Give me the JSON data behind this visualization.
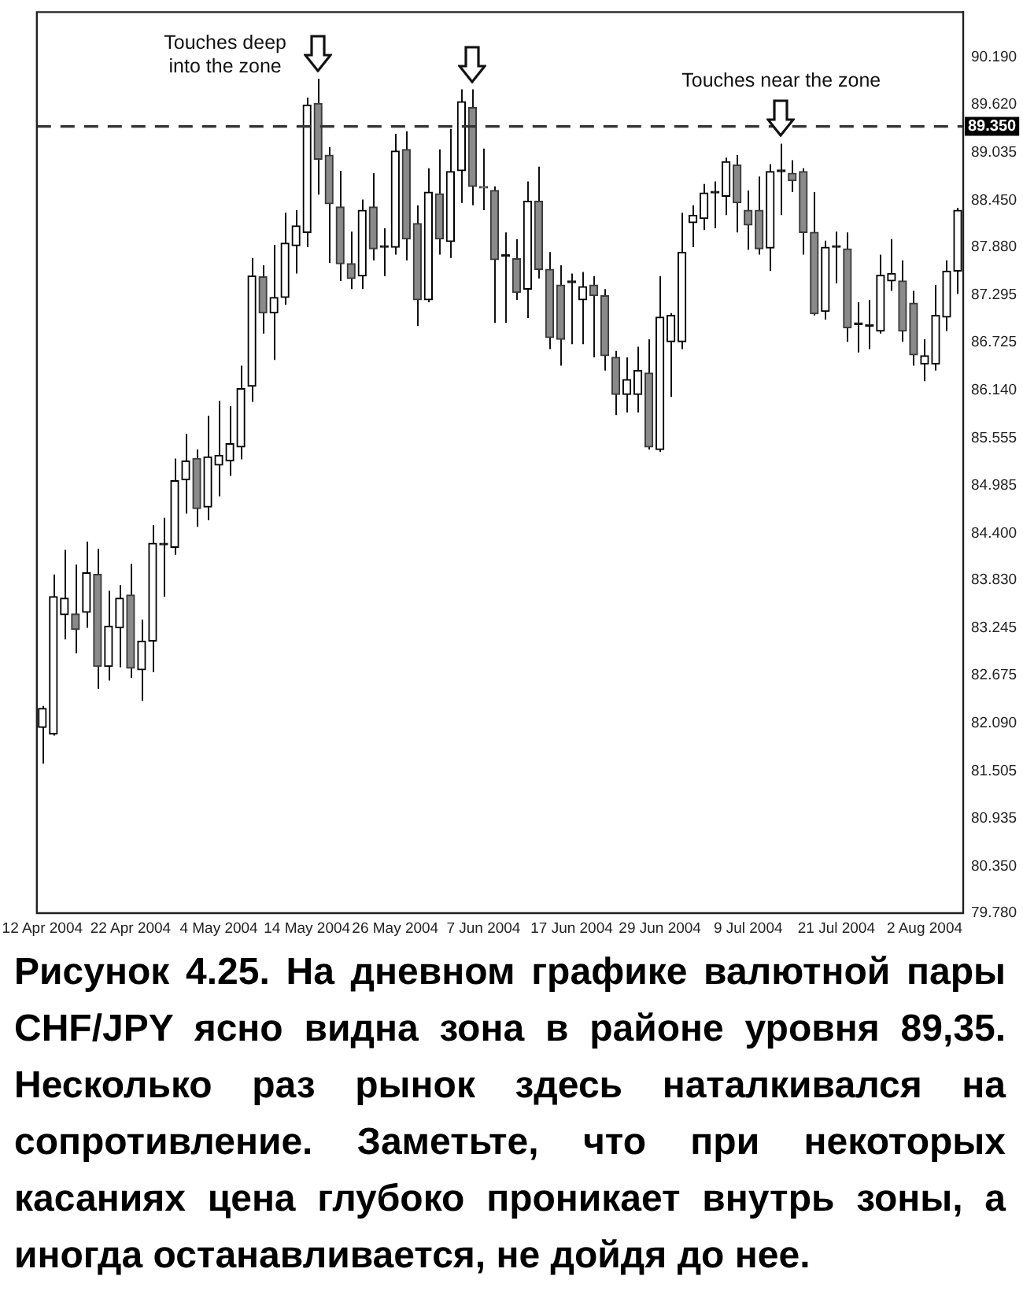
{
  "chart_data": {
    "type": "candlestick",
    "categories": [
      "12 Apr 2004",
      null,
      null,
      null,
      null,
      null,
      null,
      null,
      "22 Apr 2004",
      null,
      null,
      null,
      null,
      null,
      null,
      null,
      "4 May 2004",
      null,
      null,
      null,
      null,
      null,
      null,
      null,
      "14 May 2004",
      null,
      null,
      null,
      null,
      null,
      null,
      null,
      "26 May 2004",
      null,
      null,
      null,
      null,
      null,
      null,
      null,
      "7 Jun 2004",
      null,
      null,
      null,
      null,
      null,
      null,
      null,
      "17 Jun 2004",
      null,
      null,
      null,
      null,
      null,
      null,
      null,
      "29 Jun 2004",
      null,
      null,
      null,
      null,
      null,
      null,
      null,
      "9 Jul 2004",
      null,
      null,
      null,
      null,
      null,
      null,
      null,
      "21 Jul 2004",
      null,
      null,
      null,
      null,
      null,
      null,
      null,
      "2 Aug 2004",
      null,
      null,
      null
    ],
    "ohlc": [
      [
        82.04,
        82.3,
        81.6,
        82.27
      ],
      [
        81.96,
        83.9,
        81.94,
        83.63
      ],
      [
        83.41,
        84.2,
        83.11,
        83.61
      ],
      [
        83.42,
        84.02,
        82.94,
        83.23
      ],
      [
        83.44,
        84.3,
        83.25,
        83.92
      ],
      [
        83.9,
        84.21,
        82.51,
        82.78
      ],
      [
        82.78,
        83.7,
        82.61,
        83.27
      ],
      [
        83.25,
        83.77,
        82.77,
        83.61
      ],
      [
        83.65,
        84.03,
        82.64,
        82.76
      ],
      [
        82.74,
        83.35,
        82.36,
        83.09
      ],
      [
        83.09,
        84.5,
        82.71,
        84.28
      ],
      [
        84.26,
        84.59,
        83.63,
        84.26
      ],
      [
        84.23,
        85.31,
        84.14,
        85.04
      ],
      [
        85.05,
        85.61,
        84.64,
        85.28
      ],
      [
        85.31,
        85.42,
        84.48,
        84.7
      ],
      [
        84.72,
        85.83,
        84.56,
        85.33
      ],
      [
        85.23,
        86.01,
        84.85,
        85.35
      ],
      [
        85.28,
        85.95,
        85.1,
        85.49
      ],
      [
        85.45,
        86.44,
        85.3,
        86.16
      ],
      [
        86.19,
        87.75,
        86.0,
        87.53
      ],
      [
        87.52,
        87.66,
        86.83,
        87.08
      ],
      [
        87.08,
        87.91,
        86.51,
        87.27
      ],
      [
        87.27,
        88.3,
        87.18,
        87.93
      ],
      [
        87.9,
        88.33,
        87.56,
        88.14
      ],
      [
        88.06,
        89.7,
        87.88,
        89.61
      ],
      [
        89.63,
        89.93,
        88.52,
        88.95
      ],
      [
        89.0,
        89.1,
        87.69,
        88.41
      ],
      [
        88.37,
        88.81,
        87.47,
        87.68
      ],
      [
        87.68,
        88.07,
        87.37,
        87.5
      ],
      [
        87.53,
        88.46,
        87.37,
        88.33
      ],
      [
        88.37,
        88.78,
        87.72,
        87.86
      ],
      [
        87.88,
        88.11,
        87.53,
        87.88
      ],
      [
        87.88,
        89.26,
        87.79,
        89.05
      ],
      [
        89.07,
        89.29,
        87.72,
        87.98
      ],
      [
        88.17,
        88.39,
        86.92,
        87.24
      ],
      [
        87.24,
        88.84,
        87.21,
        88.55
      ],
      [
        88.53,
        89.07,
        87.79,
        87.98
      ],
      [
        87.95,
        89.32,
        87.75,
        88.8
      ],
      [
        88.81,
        89.8,
        88.42,
        89.65
      ],
      [
        89.58,
        89.8,
        88.39,
        88.62
      ],
      [
        88.62,
        89.08,
        88.33,
        88.6
      ],
      [
        88.57,
        88.62,
        86.96,
        87.73
      ],
      [
        87.77,
        88.06,
        86.96,
        87.77
      ],
      [
        87.74,
        87.98,
        87.24,
        87.33
      ],
      [
        87.37,
        88.68,
        87.02,
        88.44
      ],
      [
        88.44,
        88.86,
        87.5,
        87.61
      ],
      [
        87.61,
        87.82,
        86.64,
        86.78
      ],
      [
        87.42,
        87.66,
        86.44,
        86.76
      ],
      [
        87.45,
        87.56,
        86.7,
        87.45
      ],
      [
        87.24,
        87.58,
        86.7,
        87.4
      ],
      [
        87.42,
        87.53,
        86.54,
        87.29
      ],
      [
        87.29,
        87.37,
        86.38,
        86.56
      ],
      [
        86.54,
        86.62,
        85.84,
        86.09
      ],
      [
        86.09,
        86.54,
        85.87,
        86.27
      ],
      [
        86.09,
        86.67,
        85.87,
        86.38
      ],
      [
        86.35,
        86.76,
        85.42,
        85.45
      ],
      [
        85.42,
        87.53,
        85.39,
        87.03
      ],
      [
        86.73,
        87.08,
        86.06,
        87.05
      ],
      [
        86.73,
        88.3,
        86.64,
        87.82
      ],
      [
        88.18,
        88.39,
        87.88,
        88.27
      ],
      [
        88.23,
        88.65,
        88.09,
        88.54
      ],
      [
        88.54,
        88.68,
        88.11,
        88.54
      ],
      [
        88.5,
        88.97,
        88.27,
        88.92
      ],
      [
        88.88,
        89.0,
        88.06,
        88.42
      ],
      [
        88.33,
        88.57,
        87.85,
        88.15
      ],
      [
        88.33,
        88.74,
        87.79,
        87.86
      ],
      [
        87.87,
        88.89,
        87.59,
        88.8
      ],
      [
        88.8,
        89.14,
        88.27,
        88.8
      ],
      [
        88.78,
        88.94,
        88.55,
        88.69
      ],
      [
        88.8,
        88.84,
        87.79,
        88.06
      ],
      [
        88.06,
        88.55,
        87.05,
        87.07
      ],
      [
        87.1,
        87.96,
        87.0,
        87.88
      ],
      [
        87.88,
        88.07,
        87.44,
        87.88
      ],
      [
        87.86,
        88.06,
        86.73,
        86.9
      ],
      [
        86.94,
        87.21,
        86.6,
        86.94
      ],
      [
        86.92,
        87.24,
        86.64,
        86.92
      ],
      [
        86.86,
        87.79,
        86.83,
        87.54
      ],
      [
        87.47,
        87.98,
        87.35,
        87.56
      ],
      [
        87.47,
        87.72,
        86.73,
        86.86
      ],
      [
        87.2,
        87.35,
        86.44,
        86.57
      ],
      [
        86.46,
        86.76,
        86.25,
        86.56
      ],
      [
        86.46,
        87.42,
        86.38,
        87.05
      ],
      [
        87.03,
        87.72,
        86.86,
        87.59
      ],
      [
        87.59,
        88.36,
        87.31,
        88.33
      ]
    ],
    "ylim": [
      79.78,
      90.74
    ],
    "yticks": [
      {
        "value": 79.78,
        "label": "79.780"
      },
      {
        "value": 80.35,
        "label": "80.350"
      },
      {
        "value": 80.935,
        "label": "80.935"
      },
      {
        "value": 81.505,
        "label": "81.505"
      },
      {
        "value": 82.09,
        "label": "82.090"
      },
      {
        "value": 82.675,
        "label": "82.675"
      },
      {
        "value": 83.245,
        "label": "83.245"
      },
      {
        "value": 83.83,
        "label": "83.830"
      },
      {
        "value": 84.4,
        "label": "84.400"
      },
      {
        "value": 84.985,
        "label": "84.985"
      },
      {
        "value": 85.555,
        "label": "85.555"
      },
      {
        "value": 86.14,
        "label": "86.140"
      },
      {
        "value": 86.725,
        "label": "86.725"
      },
      {
        "value": 87.295,
        "label": "87.295"
      },
      {
        "value": 87.88,
        "label": "87.880"
      },
      {
        "value": 88.45,
        "label": "88.450"
      },
      {
        "value": 89.035,
        "label": "89.035"
      },
      {
        "value": 89.62,
        "label": "89.620"
      },
      {
        "value": 90.19,
        "label": "90.190"
      }
    ],
    "ref_lines": [
      {
        "axis": "y",
        "value": 89.35,
        "label": "89.350",
        "color": "#333333",
        "line_style": "dashed"
      }
    ],
    "annotations": [
      "Touches deep into the zone",
      "Touches near the zone",
      "Рисунок 4.25. На дневном графике валютной пары CHF/JPY ясно видна зона в районе уровня 89,35. Несколько раз рынок здесь наталкивался на сопротивление. Заметьте, что при некоторых касаниях цена глубоко проникает внутрь зоны, а иногда останавливается, не дойдя до нее."
    ],
    "grid": false,
    "legend": false
  }
}
